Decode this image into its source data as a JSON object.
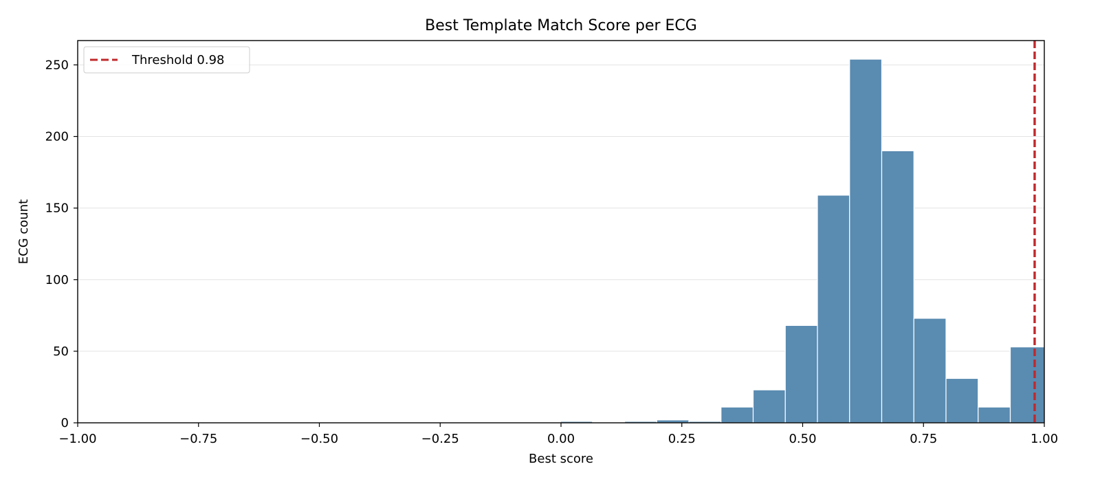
{
  "chart_data": {
    "type": "bar",
    "title": "Best Template Match Score per ECG",
    "xlabel": "Best score",
    "ylabel": "ECG count",
    "xlim": [
      -1.0,
      1.0
    ],
    "ylim": [
      0,
      267
    ],
    "xticks": [
      -1.0,
      -0.75,
      -0.5,
      -0.25,
      0.0,
      0.25,
      0.5,
      0.75,
      1.0
    ],
    "xtick_labels": [
      "−1.00",
      "−0.75",
      "−0.50",
      "−0.25",
      "0.00",
      "0.25",
      "0.50",
      "0.75",
      "1.00"
    ],
    "yticks": [
      0,
      50,
      100,
      150,
      200,
      250
    ],
    "ytick_labels": [
      "0",
      "50",
      "100",
      "150",
      "200",
      "250"
    ],
    "grid": "y",
    "legend_position": "top-left",
    "bar_color": "#5a8bb1",
    "threshold_color": "#c0282b",
    "bins": [
      {
        "x0": -0.0014,
        "x1": 0.0651,
        "count": 1
      },
      {
        "x0": 0.1316,
        "x1": 0.1981,
        "count": 1
      },
      {
        "x0": 0.1981,
        "x1": 0.2646,
        "count": 2
      },
      {
        "x0": 0.2646,
        "x1": 0.3311,
        "count": 1
      },
      {
        "x0": 0.3311,
        "x1": 0.3976,
        "count": 11
      },
      {
        "x0": 0.3976,
        "x1": 0.4641,
        "count": 23
      },
      {
        "x0": 0.4641,
        "x1": 0.5306,
        "count": 68
      },
      {
        "x0": 0.5306,
        "x1": 0.5971,
        "count": 159
      },
      {
        "x0": 0.5971,
        "x1": 0.6636,
        "count": 254
      },
      {
        "x0": 0.6636,
        "x1": 0.7301,
        "count": 190
      },
      {
        "x0": 0.7301,
        "x1": 0.7966,
        "count": 73
      },
      {
        "x0": 0.7966,
        "x1": 0.8631,
        "count": 31
      },
      {
        "x0": 0.8631,
        "x1": 0.9296,
        "count": 11
      },
      {
        "x0": 0.9296,
        "x1": 1.0,
        "count": 53
      }
    ],
    "threshold": {
      "value": 0.98,
      "label": "Threshold 0.98"
    }
  }
}
